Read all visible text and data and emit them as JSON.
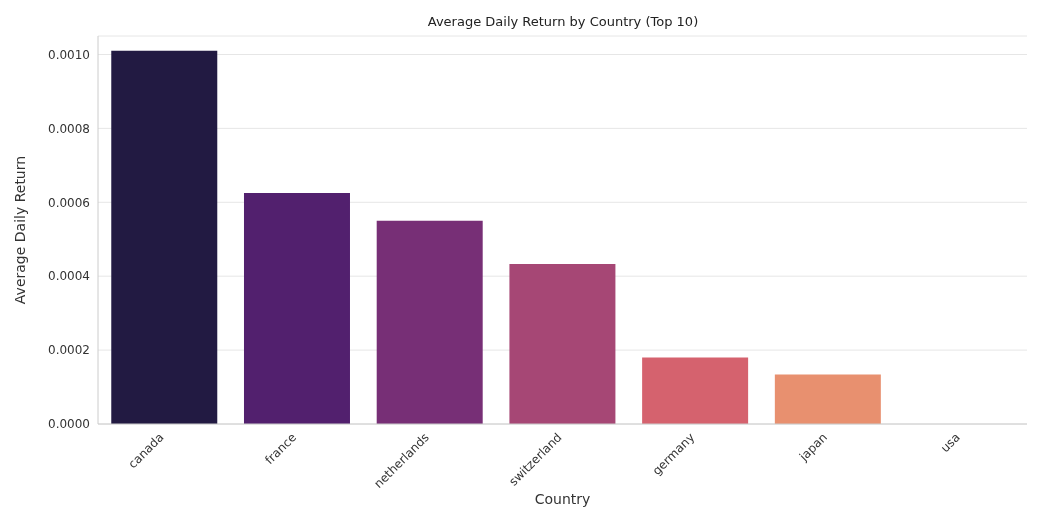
{
  "chart_data": {
    "type": "bar",
    "title": "Average Daily Return by Country (Top 10)",
    "xlabel": "Country",
    "ylabel": "Average Daily Return",
    "categories": [
      "canada",
      "france",
      "netherlands",
      "switzerland",
      "germany",
      "japan",
      "usa"
    ],
    "values": [
      0.00101,
      0.000625,
      0.00055,
      0.000433,
      0.00018,
      0.000134,
      0
    ],
    "colors": [
      "#221a42",
      "#52206e",
      "#772f76",
      "#a64775",
      "#d5626e",
      "#e8906f",
      "#f5c39a"
    ],
    "ylim": [
      0,
      0.00105
    ],
    "yticks": [
      {
        "value": 0,
        "label": "0.0000"
      },
      {
        "value": 0.0002,
        "label": "0.0002"
      },
      {
        "value": 0.0004,
        "label": "0.0004"
      },
      {
        "value": 0.0006,
        "label": "0.0006"
      },
      {
        "value": 0.0008,
        "label": "0.0008"
      },
      {
        "value": 0.001,
        "label": "0.0010"
      }
    ],
    "grid": "y"
  }
}
